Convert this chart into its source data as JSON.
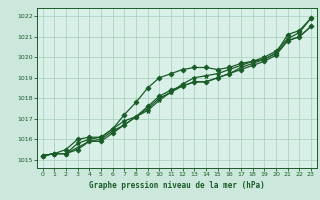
{
  "title": "Graphe pression niveau de la mer (hPa)",
  "bg_color": "#cce8dc",
  "plot_bg_color": "#d8f0e8",
  "line_color": "#1a5c28",
  "grid_color": "#a8ccb8",
  "axis_color": "#1a5c28",
  "ylim": [
    1014.6,
    1022.4
  ],
  "xlim": [
    -0.5,
    23.5
  ],
  "yticks": [
    1015,
    1016,
    1017,
    1018,
    1019,
    1020,
    1021,
    1022
  ],
  "xticks": [
    0,
    1,
    2,
    3,
    4,
    5,
    6,
    7,
    8,
    9,
    10,
    11,
    12,
    13,
    14,
    15,
    16,
    17,
    18,
    19,
    20,
    21,
    22,
    23
  ],
  "series": [
    {
      "y": [
        1015.2,
        1015.3,
        1015.3,
        1015.5,
        1015.9,
        1015.9,
        1016.3,
        1016.7,
        1017.1,
        1017.6,
        1018.1,
        1018.4,
        1018.6,
        1018.8,
        1018.8,
        1019.0,
        1019.2,
        1019.4,
        1019.6,
        1019.8,
        1020.1,
        1020.8,
        1021.0,
        1021.5
      ],
      "marker": "D",
      "ms": 2.5,
      "lw": 0.9
    },
    {
      "y": [
        1015.2,
        1015.3,
        1015.3,
        1015.6,
        1015.9,
        1016.0,
        1016.4,
        1016.7,
        1017.1,
        1017.5,
        1018.0,
        1018.3,
        1018.6,
        1018.8,
        1018.8,
        1019.0,
        1019.2,
        1019.5,
        1019.7,
        1019.9,
        1020.2,
        1020.8,
        1021.0,
        1021.5
      ],
      "marker": "+",
      "ms": 3.5,
      "lw": 0.9
    },
    {
      "y": [
        1015.2,
        1015.3,
        1015.3,
        1015.8,
        1016.0,
        1016.1,
        1016.5,
        1016.9,
        1017.1,
        1017.4,
        1017.9,
        1018.3,
        1018.7,
        1019.0,
        1019.1,
        1019.2,
        1019.4,
        1019.6,
        1019.8,
        1020.0,
        1020.3,
        1020.9,
        1021.2,
        1021.9
      ],
      "marker": "*",
      "ms": 3.5,
      "lw": 0.9
    },
    {
      "y": [
        1015.2,
        1015.3,
        1015.5,
        1016.0,
        1016.1,
        1016.1,
        1016.5,
        1017.2,
        1017.8,
        1018.5,
        1019.0,
        1019.2,
        1019.4,
        1019.5,
        1019.5,
        1019.4,
        1019.5,
        1019.7,
        1019.8,
        1019.9,
        1020.2,
        1021.1,
        1021.3,
        1021.9
      ],
      "marker": "D",
      "ms": 2.5,
      "lw": 0.9
    }
  ]
}
